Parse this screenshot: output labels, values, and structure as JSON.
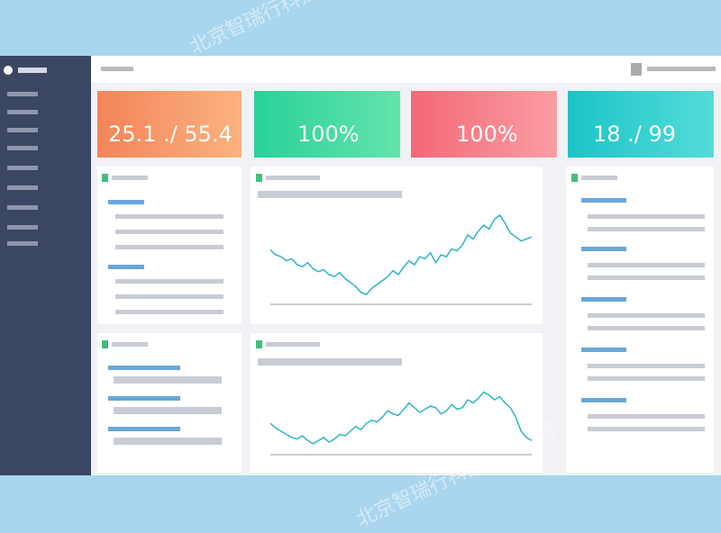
{
  "watermark": "北京智瑞行科技有限公司",
  "cards": [
    {
      "value": "25.1 ./ 55.4"
    },
    {
      "value": "100%"
    },
    {
      "value": "100%"
    },
    {
      "value": "18 ./ 99"
    }
  ],
  "charts": [
    {
      "type": "line",
      "color": "#2fb5c2",
      "ylim": [
        0,
        100
      ],
      "values": [
        55,
        50,
        48,
        44,
        46,
        40,
        38,
        42,
        36,
        33,
        35,
        30,
        28,
        32,
        26,
        22,
        18,
        12,
        10,
        16,
        20,
        24,
        28,
        34,
        30,
        38,
        44,
        40,
        48,
        46,
        52,
        42,
        50,
        48,
        56,
        54,
        60,
        70,
        66,
        74,
        80,
        76,
        86,
        90,
        82,
        72,
        68,
        64,
        66,
        68
      ]
    },
    {
      "type": "line",
      "color": "#2fb5c2",
      "ylim": [
        0,
        100
      ],
      "values": [
        40,
        34,
        30,
        26,
        22,
        20,
        24,
        18,
        14,
        18,
        22,
        16,
        20,
        26,
        24,
        30,
        36,
        32,
        40,
        44,
        42,
        48,
        56,
        52,
        50,
        58,
        66,
        60,
        54,
        58,
        62,
        60,
        52,
        56,
        64,
        58,
        60,
        70,
        66,
        72,
        80,
        76,
        70,
        74,
        66,
        60,
        48,
        30,
        22,
        18
      ]
    }
  ]
}
